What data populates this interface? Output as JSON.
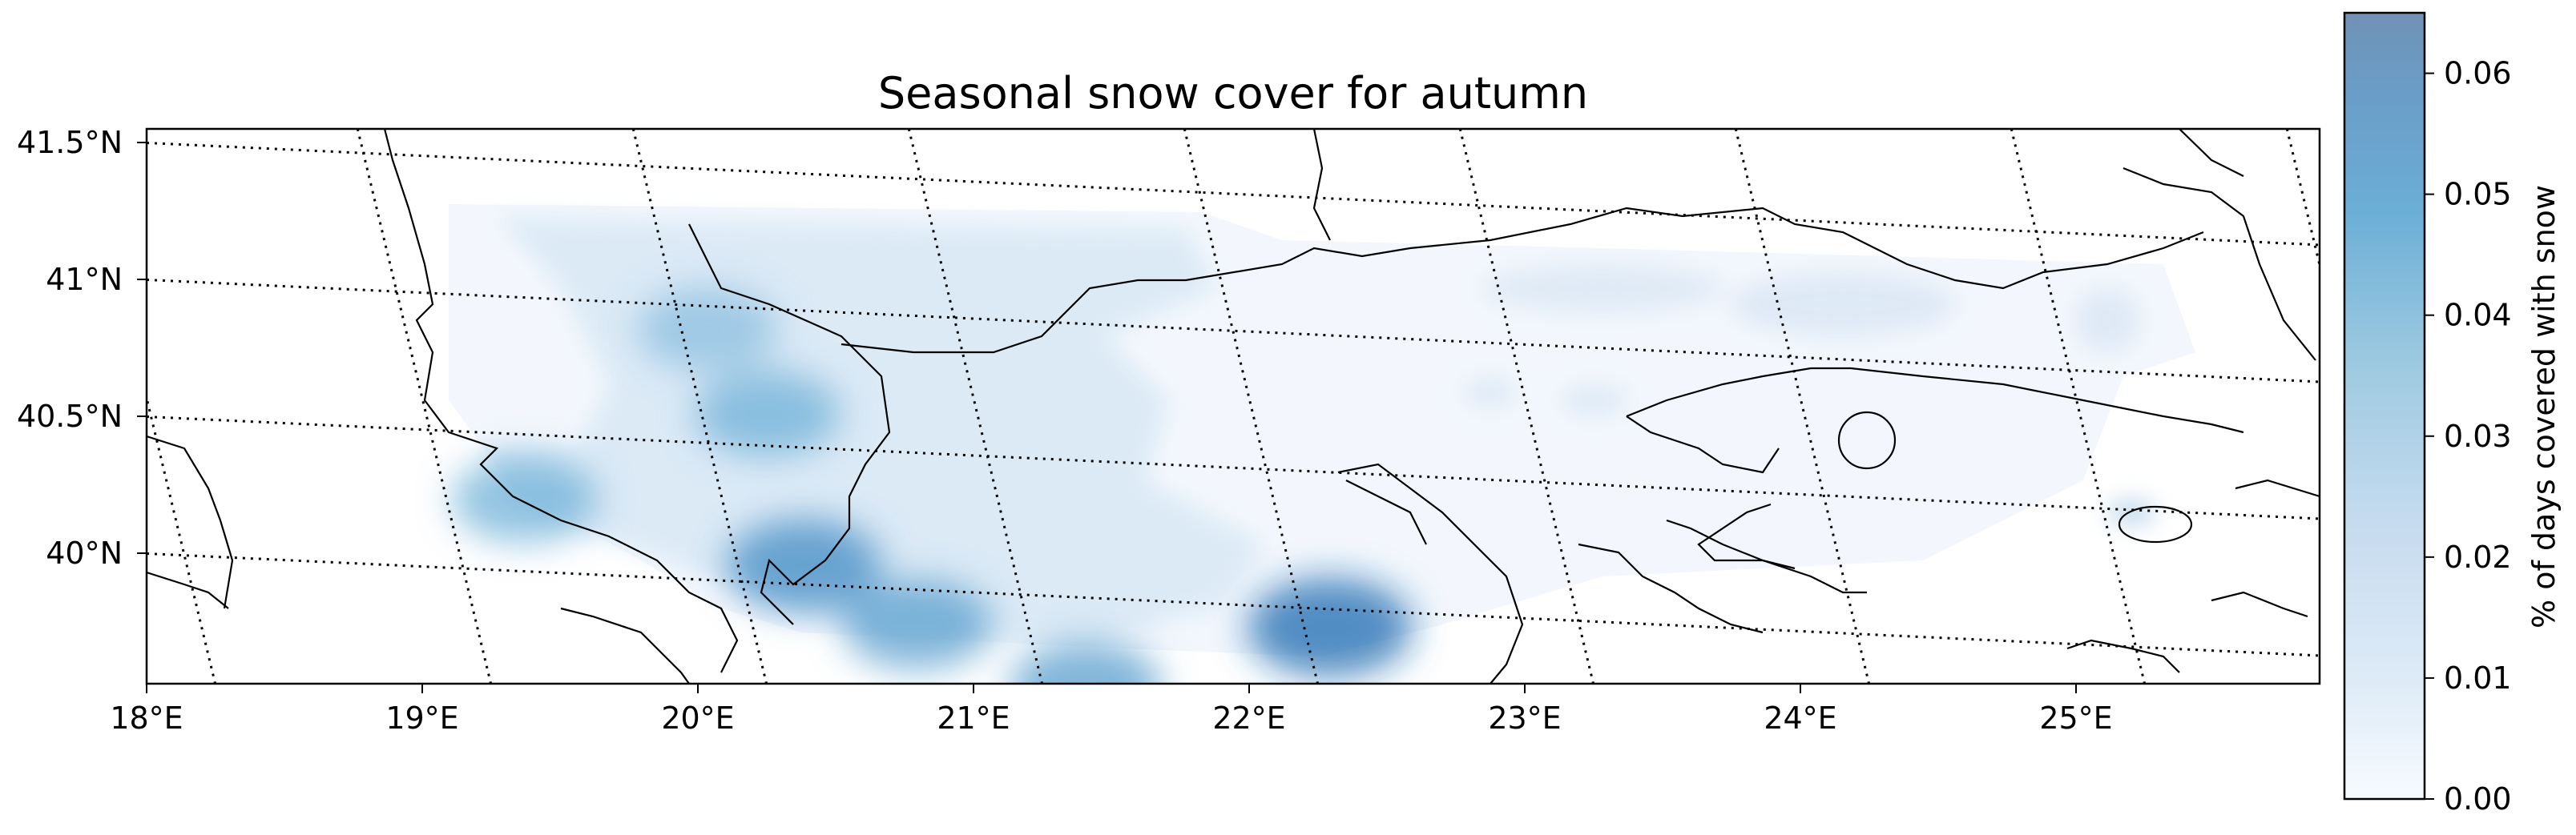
{
  "title": "Seasonal snow cover for autumn",
  "chart_data": {
    "type": "heatmap",
    "title": "Seasonal snow cover for autumn",
    "projection": "oblique (meridians tilted, parallels tilted)",
    "lon_ticks": [
      "18°E",
      "19°E",
      "20°E",
      "21°E",
      "22°E",
      "23°E",
      "24°E",
      "25°E"
    ],
    "lat_ticks": [
      "41.5°N",
      "41°N",
      "40.5°N",
      "40°N"
    ],
    "lon_range": [
      18,
      25.9
    ],
    "lat_range": [
      39.5,
      41.55
    ],
    "gridlines": "dotted",
    "colormap": "Blues",
    "colorbar": {
      "label": "% of days covered with snow",
      "ticks": [
        "0.00",
        "0.01",
        "0.02",
        "0.03",
        "0.04",
        "0.05",
        "0.06"
      ],
      "range": [
        0,
        0.065
      ],
      "placement": "right"
    },
    "hotspots": [
      {
        "lon": 20.0,
        "lat": 40.9,
        "value": 0.03
      },
      {
        "lon": 20.2,
        "lat": 40.6,
        "value": 0.035
      },
      {
        "lon": 19.3,
        "lat": 40.25,
        "value": 0.035
      },
      {
        "lon": 20.3,
        "lat": 40.05,
        "value": 0.045
      },
      {
        "lon": 20.7,
        "lat": 39.85,
        "value": 0.04
      },
      {
        "lon": 21.3,
        "lat": 39.65,
        "value": 0.04
      },
      {
        "lon": 22.2,
        "lat": 39.9,
        "value": 0.055
      }
    ]
  },
  "colors": {
    "low": "#f4f9fe",
    "mid": "#9ecae1",
    "high": "#2171b5",
    "max": "#08519c",
    "gridline": "#000000",
    "coast": "#000000"
  }
}
